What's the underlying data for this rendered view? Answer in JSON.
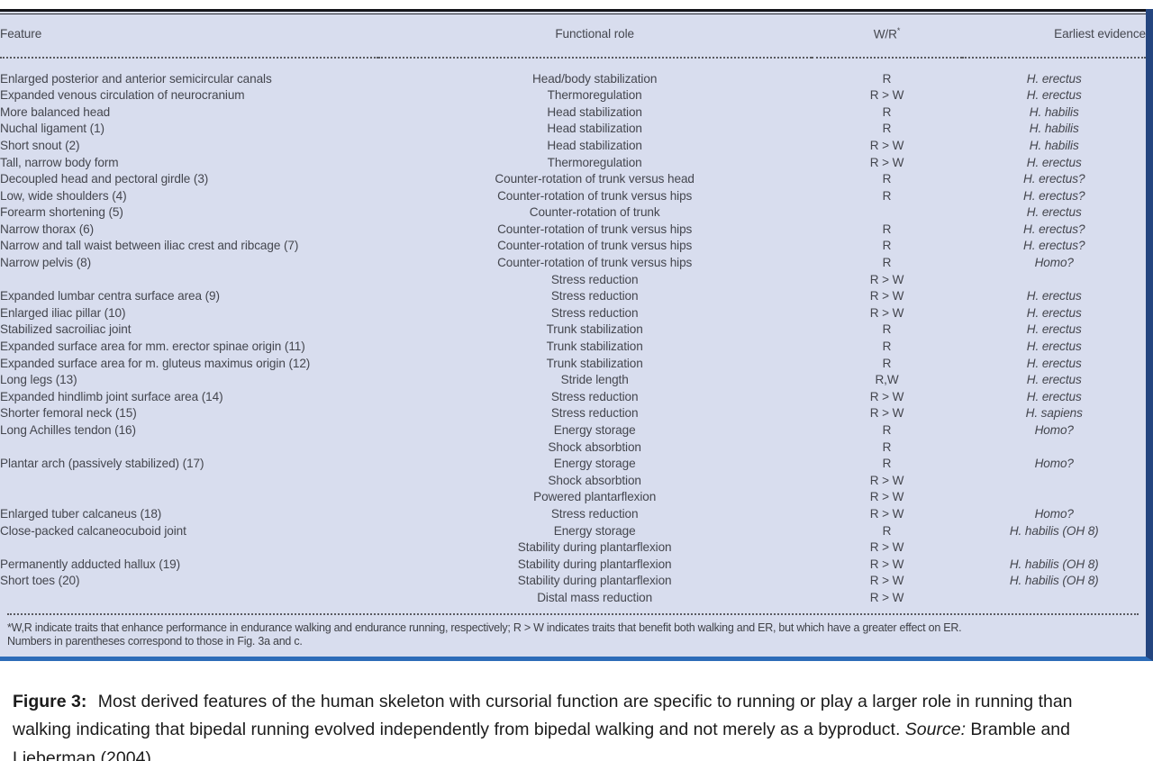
{
  "colors": {
    "panel_bg": "#d8ddee",
    "right_border": "#24457f",
    "bottom_border": "#2d6cb8",
    "table_text": "#44464e"
  },
  "table": {
    "headers": {
      "feature": "Feature",
      "role": "Functional role",
      "wr": "W/R",
      "wr_sup": "*",
      "evidence": "Earliest evidence"
    },
    "rows": [
      {
        "feature": "Enlarged posterior and anterior semicircular canals",
        "role": "Head/body stabilization",
        "wr": "R",
        "evidence": "H. erectus"
      },
      {
        "feature": "Expanded venous circulation of neurocranium",
        "role": "Thermoregulation",
        "wr": "R > W",
        "evidence": "H. erectus"
      },
      {
        "feature": "More balanced head",
        "role": "Head stabilization",
        "wr": "R",
        "evidence": "H. habilis"
      },
      {
        "feature": "Nuchal ligament (1)",
        "role": "Head stabilization",
        "wr": "R",
        "evidence": "H. habilis"
      },
      {
        "feature": "Short snout (2)",
        "role": "Head stabilization",
        "wr": "R > W",
        "evidence": "H. habilis"
      },
      {
        "feature": "Tall, narrow body form",
        "role": "Thermoregulation",
        "wr": "R > W",
        "evidence": "H. erectus"
      },
      {
        "feature": "Decoupled head and pectoral girdle (3)",
        "role": "Counter-rotation of trunk versus head",
        "wr": "R",
        "evidence": "H. erectus?"
      },
      {
        "feature": "Low, wide shoulders (4)",
        "role": "Counter-rotation of trunk versus hips",
        "wr": "R",
        "evidence": "H. erectus?"
      },
      {
        "feature": "Forearm shortening (5)",
        "role": "Counter-rotation of trunk",
        "wr": "",
        "evidence": "H. erectus"
      },
      {
        "feature": "Narrow thorax (6)",
        "role": "Counter-rotation of trunk versus hips",
        "wr": "R",
        "evidence": "H. erectus?"
      },
      {
        "feature": "Narrow and tall waist between iliac crest and ribcage (7)",
        "role": "Counter-rotation of trunk versus hips",
        "wr": "R",
        "evidence": "H. erectus?"
      },
      {
        "feature": "Narrow pelvis (8)",
        "role": "Counter-rotation of trunk versus hips",
        "wr": "R",
        "evidence": "Homo?"
      },
      {
        "feature": "",
        "role": "Stress reduction",
        "wr": "R > W",
        "evidence": ""
      },
      {
        "feature": "Expanded lumbar centra surface area (9)",
        "role": "Stress reduction",
        "wr": "R > W",
        "evidence": "H. erectus"
      },
      {
        "feature": "Enlarged iliac pillar (10)",
        "role": "Stress reduction",
        "wr": "R > W",
        "evidence": "H. erectus"
      },
      {
        "feature": "Stabilized sacroiliac joint",
        "role": "Trunk stabilization",
        "wr": "R",
        "evidence": "H. erectus"
      },
      {
        "feature": "Expanded surface area for mm. erector spinae origin (11)",
        "role": "Trunk stabilization",
        "wr": "R",
        "evidence": "H. erectus"
      },
      {
        "feature": "Expanded surface area for m. gluteus maximus origin (12)",
        "role": "Trunk stabilization",
        "wr": "R",
        "evidence": "H. erectus"
      },
      {
        "feature": "Long legs (13)",
        "role": "Stride length",
        "wr": "R,W",
        "evidence": "H. erectus"
      },
      {
        "feature": "Expanded hindlimb joint surface area (14)",
        "role": "Stress reduction",
        "wr": "R > W",
        "evidence": "H. erectus"
      },
      {
        "feature": "Shorter femoral neck (15)",
        "role": "Stress reduction",
        "wr": "R > W",
        "evidence": "H. sapiens"
      },
      {
        "feature": "Long Achilles tendon (16)",
        "role": "Energy storage",
        "wr": "R",
        "evidence": "Homo?"
      },
      {
        "feature": "",
        "role": "Shock absorbtion",
        "wr": "R",
        "evidence": ""
      },
      {
        "feature": "Plantar arch (passively stabilized) (17)",
        "role": "Energy storage",
        "wr": "R",
        "evidence": "Homo?"
      },
      {
        "feature": "",
        "role": "Shock absorbtion",
        "wr": "R > W",
        "evidence": ""
      },
      {
        "feature": "",
        "role": "Powered plantarflexion",
        "wr": "R > W",
        "evidence": ""
      },
      {
        "feature": "Enlarged tuber calcaneus (18)",
        "role": "Stress reduction",
        "wr": "R > W",
        "evidence": "Homo?"
      },
      {
        "feature": "Close-packed calcaneocuboid joint",
        "role": "Energy storage",
        "wr": "R",
        "evidence": "H. habilis (OH 8)"
      },
      {
        "feature": "",
        "role": "Stability during plantarflexion",
        "wr": "R > W",
        "evidence": ""
      },
      {
        "feature": "Permanently adducted hallux (19)",
        "role": "Stability during plantarflexion",
        "wr": "R > W",
        "evidence": "H. habilis (OH 8)"
      },
      {
        "feature": "Short toes (20)",
        "role": "Stability during plantarflexion",
        "wr": "R > W",
        "evidence": "H. habilis (OH 8)"
      },
      {
        "feature": "",
        "role": "Distal mass reduction",
        "wr": "R > W",
        "evidence": ""
      }
    ],
    "footnote_line1": "*W,R indicate traits that enhance performance in endurance walking and endurance running, respectively; R > W indicates traits that benefit both walking and ER, but which have a greater effect on ER.",
    "footnote_line2": "Numbers in parentheses correspond to those in Fig. 3a and c."
  },
  "caption": {
    "label": "Figure 3:",
    "text": "Most derived features of the human skeleton with cursorial function are specific to running or play a larger role in running than walking indicating that bipedal running evolved independently from bipedal walking and not merely as a byproduct.",
    "source_label": "Source:",
    "source_text": "Bramble and Lieberman (2004)"
  }
}
